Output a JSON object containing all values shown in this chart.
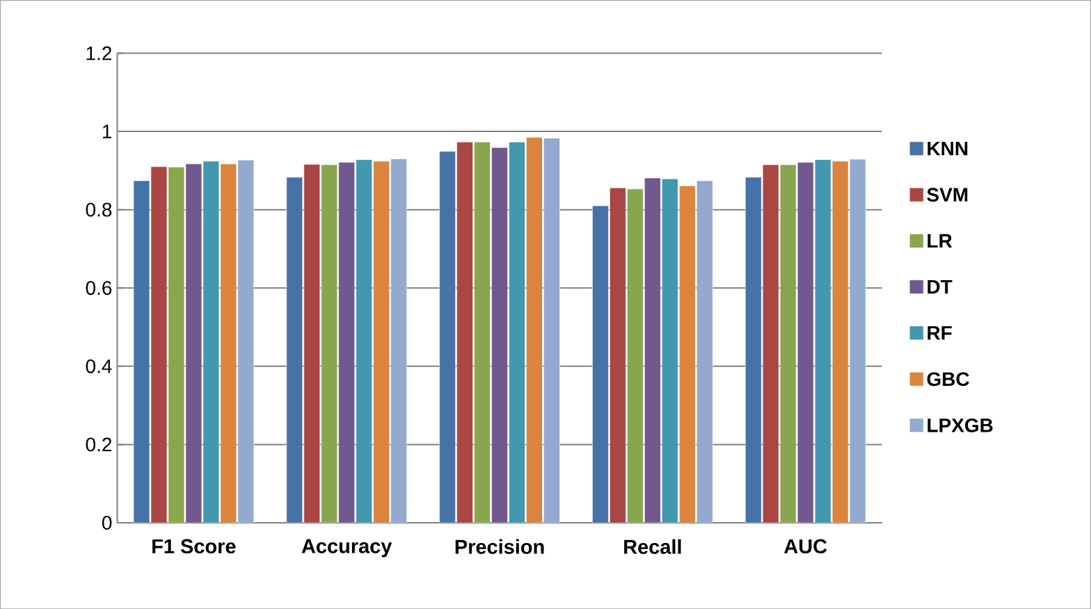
{
  "chart_data": {
    "type": "bar",
    "categories": [
      "F1 Score",
      "Accuracy",
      "Precision",
      "Recall",
      "AUC"
    ],
    "series": [
      {
        "name": "KNN",
        "color": "#4572a7",
        "values": [
          0.874,
          0.883,
          0.949,
          0.81,
          0.883
        ]
      },
      {
        "name": "SVM",
        "color": "#aa4643",
        "values": [
          0.91,
          0.916,
          0.973,
          0.856,
          0.915
        ]
      },
      {
        "name": "LR",
        "color": "#89a54e",
        "values": [
          0.909,
          0.915,
          0.973,
          0.853,
          0.915
        ]
      },
      {
        "name": "DT",
        "color": "#71588f",
        "values": [
          0.917,
          0.921,
          0.959,
          0.881,
          0.921
        ]
      },
      {
        "name": "RF",
        "color": "#4198af",
        "values": [
          0.924,
          0.928,
          0.973,
          0.879,
          0.928
        ]
      },
      {
        "name": "GBC",
        "color": "#db843d",
        "values": [
          0.917,
          0.924,
          0.985,
          0.861,
          0.924
        ]
      },
      {
        "name": "LPXGB",
        "color": "#93a9cf",
        "values": [
          0.927,
          0.93,
          0.983,
          0.874,
          0.929
        ]
      }
    ],
    "ylim": [
      0,
      1.2
    ],
    "yticks": [
      0,
      0.2,
      0.4,
      0.6,
      0.8,
      1,
      1.2
    ],
    "grid": "y",
    "legend": "right"
  }
}
